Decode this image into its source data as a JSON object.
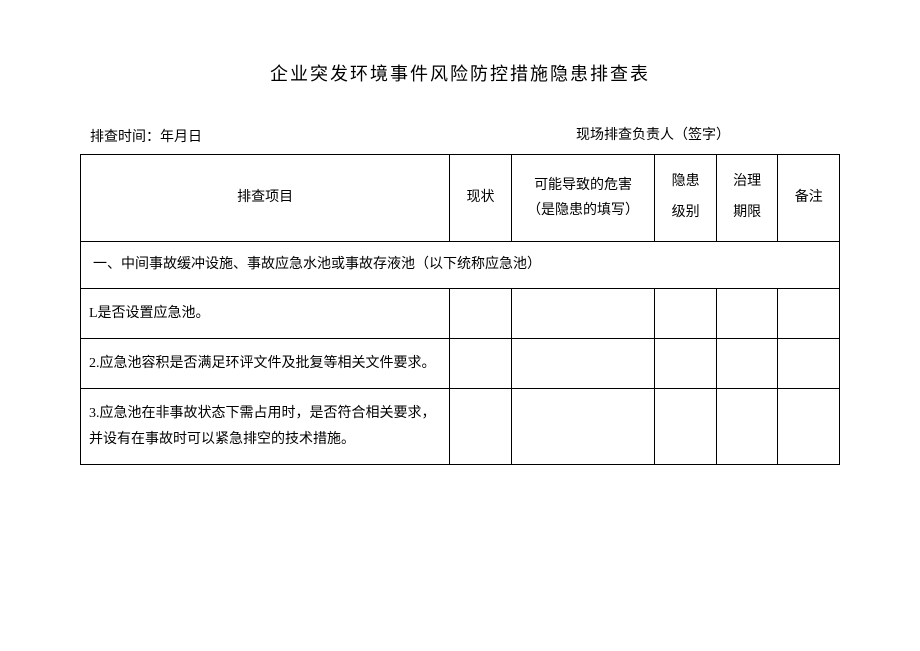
{
  "document": {
    "title": "企业突发环境事件风险防控措施隐患排查表",
    "meta": {
      "inspection_time_label": "排查时间：年月日",
      "responsible_person_label": "现场排查负责人（签字）"
    },
    "table": {
      "headers": {
        "project": "排查项目",
        "status": "现状",
        "hazard_line1": "可能导致的危害",
        "hazard_line2": "（是隐患的填写）",
        "level_line1": "隐患",
        "level_line2": "级别",
        "period_line1": "治理",
        "period_line2": "期限",
        "note": "备注"
      },
      "section": "一、中间事故缓冲设施、事故应急水池或事故存液池（以下统称应急池）",
      "rows": [
        {
          "project": "L是否设置应急池。",
          "status": "",
          "hazard": "",
          "level": "",
          "period": "",
          "note": ""
        },
        {
          "project": "2.应急池容积是否满足环评文件及批复等相关文件要求。",
          "status": "",
          "hazard": "",
          "level": "",
          "period": "",
          "note": ""
        },
        {
          "project": "3.应急池在非事故状态下需占用时，是否符合相关要求，并设有在事故时可以紧急排空的技术措施。",
          "status": "",
          "hazard": "",
          "level": "",
          "period": "",
          "note": ""
        }
      ]
    },
    "styles": {
      "text_color": "#000000",
      "background_color": "#ffffff",
      "border_color": "#000000",
      "title_fontsize": 18,
      "body_fontsize": 14
    }
  }
}
